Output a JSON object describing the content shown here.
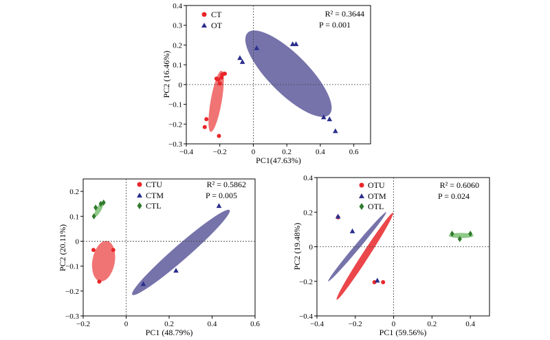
{
  "chart_data": [
    {
      "type": "scatter",
      "xlabel": "PC1(47.63%)",
      "ylabel": "PC2 (16.46%)",
      "xlim": [
        -0.4,
        0.7
      ],
      "ylim": [
        -0.3,
        0.4
      ],
      "xticks": [
        -0.4,
        -0.2,
        0,
        0.2,
        0.4,
        0.6
      ],
      "xtick_labels": [
        "−0.4",
        "−0.2",
        "0",
        "0.2",
        "0.4",
        "0.6"
      ],
      "yticks": [
        -0.3,
        -0.2,
        -0.1,
        0,
        0.1,
        0.2,
        0.3,
        0.4
      ],
      "ytick_labels": [
        "−0.3",
        "−0.2",
        "−0.1",
        "0",
        "0.1",
        "0.2",
        "0.3",
        "0.4"
      ],
      "stat_r2_label": "R² = 0.3644",
      "stat_p_label": "P = 0.001",
      "legend_position": "top-left",
      "series": [
        {
          "name": "CT",
          "marker": "circle",
          "color": "#e8262a",
          "ellipse_color": "#ee5c5c",
          "points": [
            [
              -0.28,
              -0.175
            ],
            [
              -0.29,
              -0.215
            ],
            [
              -0.22,
              0.03
            ],
            [
              -0.21,
              0.025
            ],
            [
              -0.2,
              0.005
            ],
            [
              -0.19,
              0.035
            ],
            [
              -0.185,
              0.05
            ],
            [
              -0.175,
              0.055
            ],
            [
              -0.17,
              0.055
            ],
            [
              -0.205,
              -0.26
            ]
          ],
          "ellipse": {
            "cx": -0.222,
            "cy": -0.085,
            "rx": 0.185,
            "ry": 0.028,
            "angle": 80
          }
        },
        {
          "name": "OT",
          "marker": "triangle",
          "color": "#2b2e8c",
          "ellipse_color": "#5e5a9c",
          "points": [
            [
              -0.08,
              0.135
            ],
            [
              -0.065,
              0.115
            ],
            [
              0.02,
              0.185
            ],
            [
              0.235,
              0.205
            ],
            [
              0.255,
              0.205
            ],
            [
              0.42,
              -0.165
            ],
            [
              0.455,
              -0.175
            ],
            [
              0.49,
              -0.235
            ]
          ],
          "ellipse": {
            "cx": 0.21,
            "cy": 0.055,
            "rx": 0.345,
            "ry": 0.1,
            "angle": -45
          }
        }
      ]
    },
    {
      "type": "scatter",
      "xlabel": "PC1 (48.79%)",
      "ylabel": "PC2 (20.11%)",
      "xlim": [
        -0.2,
        0.6
      ],
      "ylim": [
        -0.3,
        0.25
      ],
      "xticks": [
        -0.2,
        0,
        0.2,
        0.4,
        0.6
      ],
      "xtick_labels": [
        "−0.2",
        "0",
        "0.2",
        "0.4",
        "0.6"
      ],
      "yticks": [
        -0.3,
        -0.2,
        -0.1,
        0,
        0.1,
        0.2
      ],
      "ytick_labels": [
        "−0.3",
        "−0.2",
        "−0.1",
        "0",
        "0.1",
        "0.2"
      ],
      "stat_r2_label": "R² = 0.5862",
      "stat_p_label": "P = 0.005",
      "legend_position": "top-center",
      "series": [
        {
          "name": "CTU",
          "marker": "circle",
          "color": "#e8262a",
          "ellipse_color": "#ee5c5c",
          "points": [
            [
              -0.152,
              -0.035
            ],
            [
              -0.125,
              -0.162
            ],
            [
              -0.06,
              -0.035
            ]
          ],
          "ellipse": {
            "cx": -0.105,
            "cy": -0.08,
            "rx": 0.095,
            "ry": 0.045,
            "angle": 80
          }
        },
        {
          "name": "CTM",
          "marker": "triangle",
          "color": "#2b2e8c",
          "ellipse_color": "#5e5a9c",
          "points": [
            [
              0.08,
              -0.172
            ],
            [
              0.232,
              -0.118
            ],
            [
              0.432,
              0.142
            ]
          ],
          "ellipse": {
            "cx": 0.255,
            "cy": -0.045,
            "rx": 0.3,
            "ry": 0.03,
            "angle": 41
          }
        },
        {
          "name": "CTL",
          "marker": "diamond",
          "color": "#2f7a2c",
          "ellipse_color": "#7dc074",
          "points": [
            [
              -0.15,
              0.1
            ],
            [
              -0.142,
              0.135
            ],
            [
              -0.118,
              0.15
            ],
            [
              -0.105,
              0.155
            ]
          ],
          "ellipse": {
            "cx": -0.127,
            "cy": 0.128,
            "rx": 0.04,
            "ry": 0.01,
            "angle": 60
          }
        }
      ]
    },
    {
      "type": "scatter",
      "xlabel": "PC1 (59.56%)",
      "ylabel": "PC2 (19.48%)",
      "xlim": [
        -0.4,
        0.5
      ],
      "ylim": [
        -0.4,
        0.4
      ],
      "xticks": [
        -0.4,
        -0.2,
        0,
        0.2,
        0.4
      ],
      "xtick_labels": [
        "−0.4",
        "−0.2",
        "0",
        "0.2",
        "0.4"
      ],
      "yticks": [
        -0.4,
        -0.2,
        0,
        0.2,
        0.4
      ],
      "ytick_labels": [
        "−0.4",
        "−0.2",
        "0",
        "0.2",
        "0.4"
      ],
      "stat_r2_label": "R² = 0.6060",
      "stat_p_label": "P = 0.024",
      "legend_position": "top-center",
      "series": [
        {
          "name": "OTU",
          "marker": "circle",
          "color": "#e8262a",
          "ellipse_color": "#e8262a",
          "points": [
            [
              -0.29,
              0.17
            ],
            [
              -0.1,
              -0.205
            ],
            [
              -0.055,
              -0.205
            ]
          ],
          "ellipse": {
            "cx": -0.15,
            "cy": -0.055,
            "rx": 0.27,
            "ry": 0.02,
            "angle": 57
          }
        },
        {
          "name": "OTM",
          "marker": "triangle",
          "color": "#2b2e8c",
          "ellipse_color": "#5e5a9c",
          "points": [
            [
              -0.29,
              0.175
            ],
            [
              -0.215,
              0.09
            ],
            [
              -0.085,
              -0.195
            ]
          ],
          "ellipse": {
            "cx": -0.19,
            "cy": 0.0,
            "rx": 0.235,
            "ry": 0.015,
            "angle": 50
          }
        },
        {
          "name": "OTL",
          "marker": "diamond",
          "color": "#2f7a2c",
          "ellipse_color": "#7dc074",
          "points": [
            [
              0.305,
              0.075
            ],
            [
              0.345,
              0.045
            ],
            [
              0.4,
              0.075
            ]
          ],
          "ellipse": {
            "cx": 0.352,
            "cy": 0.065,
            "rx": 0.065,
            "ry": 0.015,
            "angle": 0
          }
        }
      ]
    }
  ]
}
